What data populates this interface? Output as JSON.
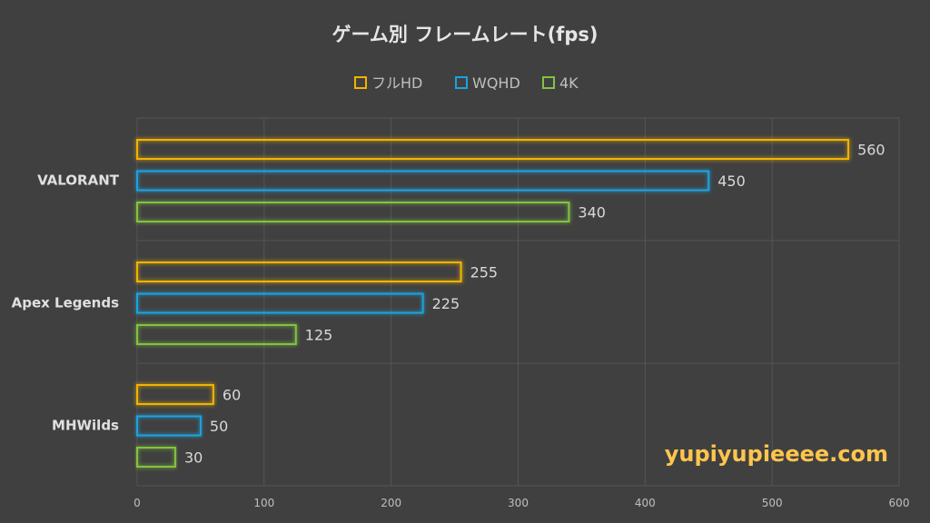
{
  "chart_data": {
    "type": "bar",
    "orientation": "horizontal",
    "title": "ゲーム別 フレームレート(fps)",
    "categories": [
      "VALORANT",
      "Apex Legends",
      "MHWilds"
    ],
    "series": [
      {
        "name": "フルHD",
        "color": "#f0b400",
        "values": [
          560,
          255,
          60
        ]
      },
      {
        "name": "WQHD",
        "color": "#1aa3e0",
        "values": [
          450,
          225,
          50
        ]
      },
      {
        "name": "4K",
        "color": "#82c341",
        "values": [
          340,
          125,
          30
        ]
      }
    ],
    "xlim": [
      0,
      600
    ],
    "xticks": [
      0,
      100,
      200,
      300,
      400,
      500,
      600
    ],
    "grid": true,
    "legend": "top",
    "background": "#404040",
    "watermark": "yupiyupieeee.com",
    "watermark_color": "#ffc54d"
  }
}
